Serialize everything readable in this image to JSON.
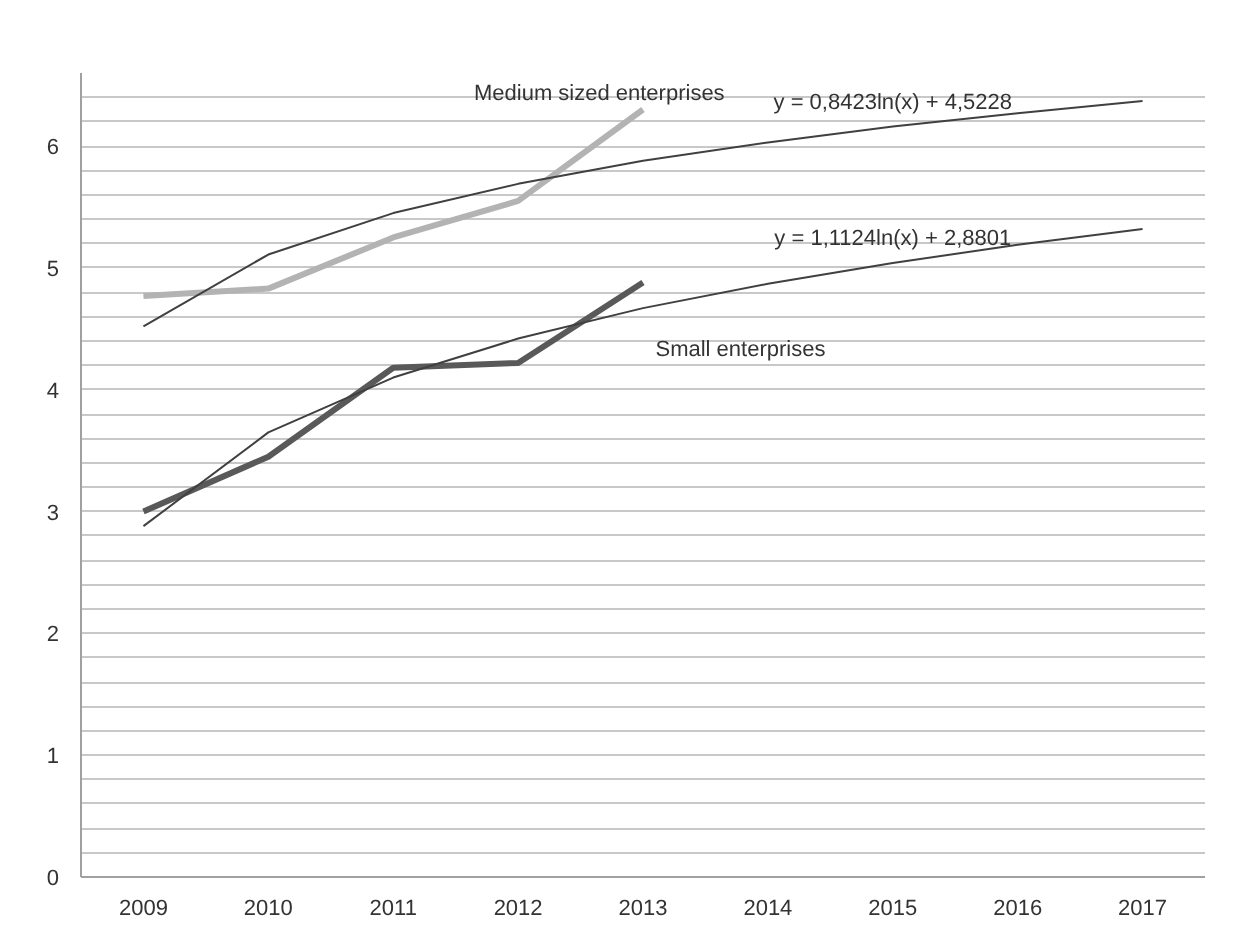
{
  "chart_data": {
    "type": "line",
    "categories": [
      "2009",
      "2010",
      "2011",
      "2012",
      "2013",
      "2014",
      "2015",
      "2016",
      "2017"
    ],
    "series": [
      {
        "name": "Medium sized enterprises",
        "color": "#b3b3b3",
        "values": [
          4.77,
          4.83,
          5.25,
          5.55,
          6.3,
          null,
          null,
          null,
          null
        ]
      },
      {
        "name": "Small enterprises",
        "color": "#595959",
        "values": [
          3.0,
          3.45,
          4.18,
          4.22,
          4.88,
          null,
          null,
          null,
          null
        ]
      },
      {
        "type": "line",
        "color": "#404040",
        "values": [
          4.52,
          5.11,
          5.45,
          5.69,
          5.88,
          6.03,
          6.16,
          6.27,
          6.37
        ]
      },
      {
        "type": "line",
        "color": "#404040",
        "values": [
          2.88,
          3.65,
          4.1,
          4.42,
          4.67,
          4.87,
          5.04,
          5.19,
          5.32
        ]
      }
    ],
    "annotations": [
      {
        "text": "y = 0,8423ln(x) + 4,5228",
        "x": "2015",
        "y": 6.16
      },
      {
        "text": "y = 1,1124ln(x) + 2,8801",
        "x": "2015",
        "y": 5.04
      }
    ],
    "ylim": [
      0,
      6.6
    ],
    "yticks": [
      0,
      {
        "value": 0.2,
        "label": null
      },
      {
        "value": 0.4,
        "label": null
      },
      {
        "value": 0.6,
        "label": null
      },
      {
        "value": 0.8,
        "label": null
      },
      1,
      {
        "value": 1.2,
        "label": null
      },
      {
        "value": 1.4,
        "label": null
      },
      {
        "value": 1.6,
        "label": null
      },
      {
        "value": 1.8,
        "label": null
      },
      2,
      {
        "value": 2.2,
        "label": null
      },
      {
        "value": 2.4,
        "label": null
      },
      {
        "value": 2.6,
        "label": null
      },
      {
        "value": 2.8,
        "label": null
      },
      3,
      {
        "value": 3.2,
        "label": null
      },
      {
        "value": 3.4,
        "label": null
      },
      {
        "value": 3.6,
        "label": null
      },
      {
        "value": 3.8,
        "label": null
      },
      4,
      {
        "value": 4.2,
        "label": null
      },
      {
        "value": 4.4,
        "label": null
      },
      {
        "value": 4.6,
        "label": null
      },
      {
        "value": 4.8,
        "label": null
      },
      5,
      {
        "value": 5.2,
        "label": null
      },
      {
        "value": 5.4,
        "label": null
      },
      {
        "value": 5.6,
        "label": null
      },
      {
        "value": 5.8,
        "label": null
      },
      6,
      {
        "value": 6.2,
        "label": null
      },
      {
        "value": 6.4,
        "label": null
      }
    ],
    "grid": "y",
    "marker": "none",
    "line_style": "solid"
  }
}
